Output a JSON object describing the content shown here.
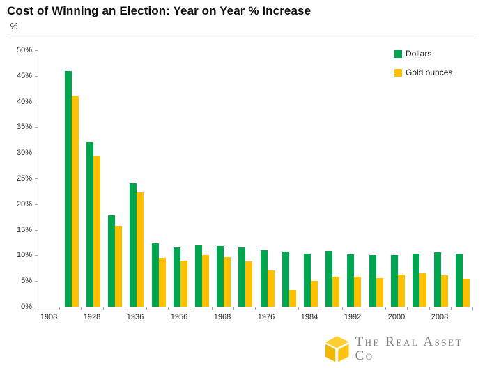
{
  "header": {
    "title": "Cost of Winning an Election: Year on Year % Increase",
    "unit": "%"
  },
  "legend": [
    {
      "label": "Dollars",
      "color": "#00A64F"
    },
    {
      "label": "Gold ounces",
      "color": "#FFC000"
    }
  ],
  "footer": {
    "brand": "The Real Asset Co"
  },
  "colors": {
    "axis": "#A6A6A6",
    "divider": "#BFBFBF",
    "dollars_green": "#00A64F",
    "gold_yellow": "#FFC000",
    "brand_gray": "#808080"
  },
  "chart_data": {
    "type": "bar",
    "title": "Cost of Winning an Election: Year on Year % Increase",
    "ylabel": "%",
    "ylim": [
      0,
      50
    ],
    "ytick_step": 5,
    "ytick_labels": [
      "0%",
      "5%",
      "10%",
      "15%",
      "20%",
      "25%",
      "30%",
      "35%",
      "40%",
      "45%",
      "50%"
    ],
    "grid": false,
    "legend_position": "top-right",
    "categories": [
      "1908",
      "",
      "1928",
      "",
      "1936",
      "",
      "1956",
      "",
      "1968",
      "",
      "1976",
      "",
      "1984",
      "",
      "1992",
      "",
      "2000",
      "",
      "2008",
      ""
    ],
    "series": [
      {
        "name": "Dollars",
        "color": "#00A64F",
        "values": [
          null,
          45.9,
          32.1,
          17.8,
          24.1,
          12.4,
          11.6,
          12.0,
          11.8,
          11.5,
          11.0,
          10.8,
          10.4,
          10.9,
          10.2,
          10.0,
          10.0,
          10.3,
          10.6,
          10.4
        ]
      },
      {
        "name": "Gold ounces",
        "color": "#FFC000",
        "values": [
          null,
          41.0,
          29.4,
          15.8,
          22.3,
          9.5,
          9.0,
          10.1,
          9.6,
          8.9,
          7.1,
          3.3,
          5.1,
          5.8,
          5.8,
          5.6,
          6.2,
          6.5,
          6.1,
          5.4
        ]
      }
    ]
  }
}
